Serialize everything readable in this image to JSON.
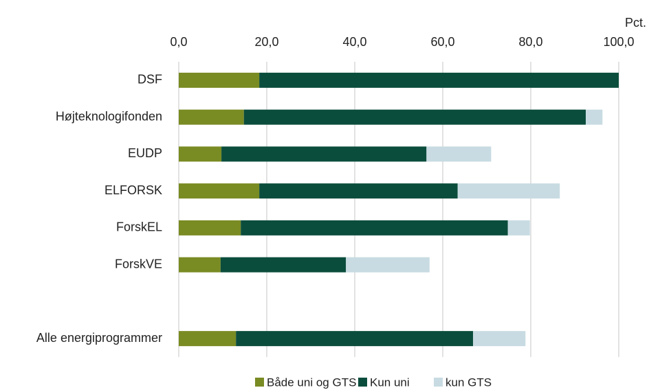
{
  "chart_data": {
    "type": "stacked_barh",
    "axis_label": "Pct.",
    "categories": [
      "DSF",
      "Højteknologifonden",
      "EUDP",
      "ELFORSK",
      "ForskEL",
      "ForskVE",
      null,
      "Alle energiprogrammer"
    ],
    "series": [
      {
        "name": "Både uni og GTS",
        "color": "#798b23",
        "values": [
          18.3,
          14.8,
          9.7,
          18.3,
          14.1,
          9.5,
          null,
          13.0
        ]
      },
      {
        "name": "Kun uni",
        "color": "#0b4d3c",
        "values": [
          81.7,
          77.7,
          46.6,
          45.1,
          60.7,
          28.5,
          null,
          53.9
        ]
      },
      {
        "name": "kun GTS",
        "color": "#c8dbe2",
        "values": [
          0,
          3.8,
          14.7,
          23.2,
          5.0,
          19.0,
          null,
          11.9
        ]
      }
    ],
    "xlim": [
      0,
      100
    ],
    "xticks": [
      {
        "value": 0,
        "label": "0,0"
      },
      {
        "value": 20,
        "label": "20,0"
      },
      {
        "value": 40,
        "label": "40,0"
      },
      {
        "value": 60,
        "label": "60,0"
      },
      {
        "value": 80,
        "label": "80,0"
      },
      {
        "value": 100,
        "label": "100,0"
      }
    ],
    "grid": true
  }
}
